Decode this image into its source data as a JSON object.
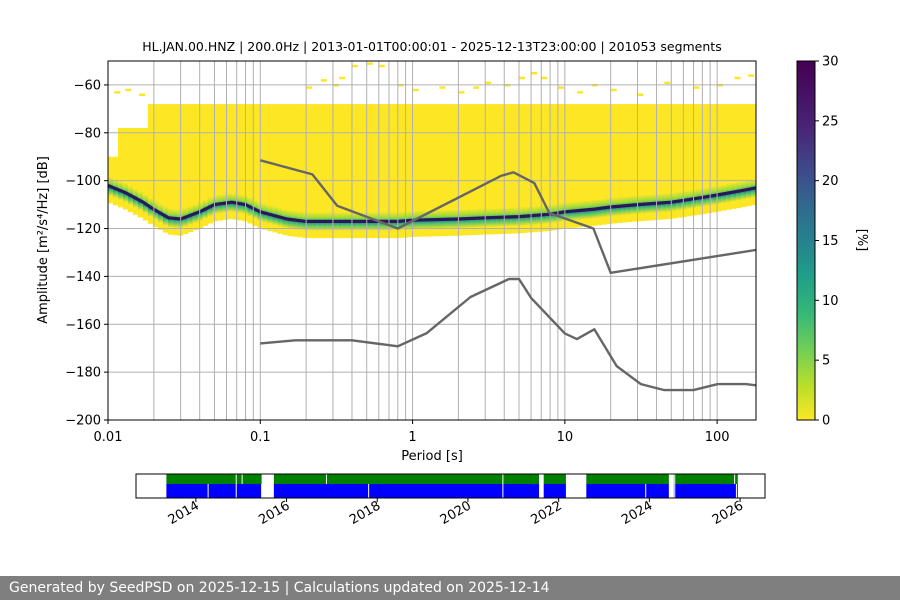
{
  "chart_data": {
    "type": "heatmap",
    "title": "HL.JAN.00.HNZ | 200.0Hz | 2013-01-01T00:00:01 - 2025-12-13T23:00:00 | 201053 segments",
    "xlabel": "Period [s]",
    "ylabel": "Amplitude [m²/s⁴/Hz] [dB]",
    "x_scale": "log",
    "xlim": [
      0.01,
      180
    ],
    "ylim": [
      -200,
      -50
    ],
    "x_ticks": [
      {
        "value": 0.01,
        "label": "0.01"
      },
      {
        "value": 0.1,
        "label": "0.1"
      },
      {
        "value": 1,
        "label": "1"
      },
      {
        "value": 10,
        "label": "10"
      },
      {
        "value": 100,
        "label": "100"
      }
    ],
    "y_ticks": [
      -200,
      -180,
      -160,
      -140,
      -120,
      -100,
      -80,
      -60
    ],
    "colorbar": {
      "label": "[%]",
      "range": [
        0,
        30
      ],
      "ticks": [
        0,
        5,
        10,
        15,
        20,
        25,
        30
      ],
      "colormap": "viridis_r"
    },
    "mode_curve": {
      "period": [
        0.01,
        0.013,
        0.017,
        0.02,
        0.025,
        0.03,
        0.04,
        0.05,
        0.065,
        0.08,
        0.1,
        0.15,
        0.2,
        0.3,
        0.5,
        0.8,
        1,
        2,
        3,
        5,
        8,
        10,
        15,
        20,
        30,
        50,
        80,
        100,
        150,
        180
      ],
      "db": [
        -102,
        -105,
        -109,
        -112,
        -115.5,
        -116,
        -113,
        -110,
        -109,
        -110,
        -113,
        -116,
        -117,
        -117,
        -117,
        -117,
        -116.5,
        -116,
        -115.5,
        -115,
        -114,
        -113,
        -112,
        -111,
        -110,
        -109,
        -107,
        -106,
        -104,
        -103
      ]
    },
    "noise_models": [
      {
        "name": "NHNM",
        "period": [
          0.1,
          0.22,
          0.32,
          0.8,
          3.8,
          4.6,
          6.3,
          7.9,
          15.4,
          20,
          354.8
        ],
        "db": [
          -91.5,
          -97.4,
          -110.5,
          -120,
          -98,
          -96.5,
          -101,
          -113.5,
          -120,
          -138.5,
          -126
        ]
      },
      {
        "name": "NLNM",
        "period": [
          0.1,
          0.17,
          0.4,
          0.8,
          1.24,
          2.4,
          4.3,
          5,
          6,
          10,
          12,
          15.6,
          21.9,
          31.6,
          45,
          70,
          101,
          154,
          328
        ],
        "db": [
          -168,
          -166.7,
          -166.7,
          -169.2,
          -163.7,
          -148.6,
          -141.1,
          -141.1,
          -149,
          -163.8,
          -166.2,
          -162.1,
          -177.5,
          -185,
          -187.5,
          -187.5,
          -185,
          -185,
          -187.5
        ]
      }
    ],
    "timeline": {
      "ticks": [
        "2014",
        "2016",
        "2018",
        "2020",
        "2022",
        "2024",
        "2026"
      ],
      "range": [
        2012.68,
        2026.55
      ],
      "coverage": [
        [
          2013.35,
          2015.45
        ],
        [
          2015.72,
          2021.57
        ],
        [
          2021.67,
          2022.16
        ],
        [
          2022.61,
          2024.43
        ],
        [
          2024.54,
          2025.95
        ]
      ],
      "gaps_top": [
        2014.89,
        2015.02,
        2016.88,
        2020.77,
        2021.58,
        2024.56,
        2025.88
      ],
      "gaps_bottom": [
        2013.33,
        2014.27,
        2014.89,
        2015.45,
        2017.81,
        2020.77,
        2021.58,
        2023.92,
        2024.56,
        2025.92
      ]
    }
  },
  "footer": {
    "text": "Generated by SeedPSD on 2025-12-15 | Calculations updated on 2025-12-14"
  }
}
